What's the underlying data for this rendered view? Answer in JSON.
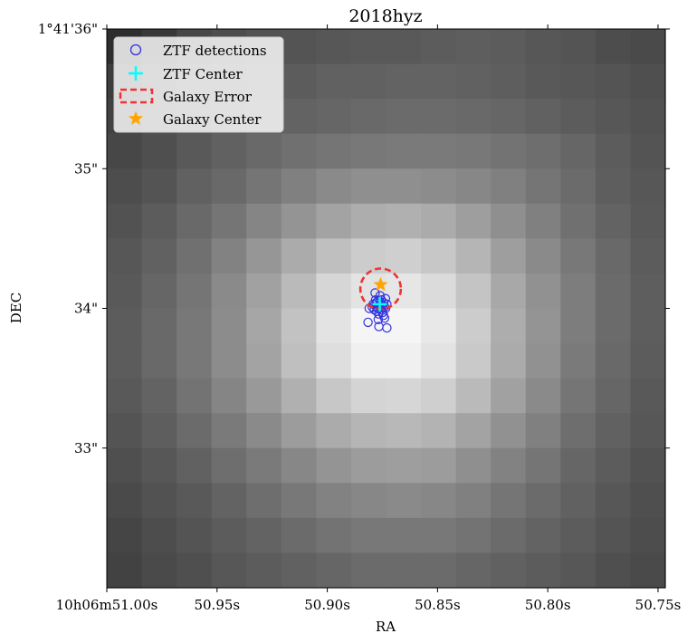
{
  "chart_data": {
    "type": "image-overlay",
    "title": "2018hyz",
    "xlabel": "RA",
    "ylabel": "DEC",
    "x_ticks": [
      {
        "value": 51.0,
        "label": "10h06m51.00s"
      },
      {
        "value": 50.95,
        "label": "50.95s"
      },
      {
        "value": 50.9,
        "label": "50.90s"
      },
      {
        "value": 50.85,
        "label": "50.85s"
      },
      {
        "value": 50.8,
        "label": "50.80s"
      },
      {
        "value": 50.75,
        "label": "50.75s"
      }
    ],
    "y_ticks": [
      {
        "value": 36,
        "label": "1°41'36\""
      },
      {
        "value": 35,
        "label": "35\""
      },
      {
        "value": 34,
        "label": "34\""
      },
      {
        "value": 33,
        "label": "33\""
      }
    ],
    "x_range": [
      51.0,
      50.7467
    ],
    "y_range": [
      32.0,
      36.0
    ],
    "colormap": "gray",
    "image_grid": [
      [
        0.18,
        0.22,
        0.28,
        0.3,
        0.32,
        0.33,
        0.34,
        0.35,
        0.35,
        0.36,
        0.37,
        0.36,
        0.34,
        0.33,
        0.3,
        0.29
      ],
      [
        0.24,
        0.28,
        0.32,
        0.34,
        0.35,
        0.36,
        0.38,
        0.38,
        0.39,
        0.39,
        0.38,
        0.37,
        0.35,
        0.34,
        0.33,
        0.31
      ],
      [
        0.26,
        0.3,
        0.33,
        0.35,
        0.37,
        0.39,
        0.4,
        0.41,
        0.42,
        0.42,
        0.41,
        0.4,
        0.38,
        0.36,
        0.34,
        0.32
      ],
      [
        0.28,
        0.31,
        0.35,
        0.38,
        0.41,
        0.44,
        0.46,
        0.47,
        0.48,
        0.48,
        0.47,
        0.45,
        0.43,
        0.4,
        0.36,
        0.33
      ],
      [
        0.3,
        0.33,
        0.38,
        0.41,
        0.46,
        0.5,
        0.54,
        0.56,
        0.56,
        0.55,
        0.53,
        0.5,
        0.46,
        0.42,
        0.37,
        0.34
      ],
      [
        0.32,
        0.36,
        0.41,
        0.46,
        0.52,
        0.58,
        0.64,
        0.68,
        0.69,
        0.67,
        0.62,
        0.56,
        0.5,
        0.44,
        0.39,
        0.35
      ],
      [
        0.34,
        0.38,
        0.44,
        0.51,
        0.59,
        0.67,
        0.75,
        0.8,
        0.81,
        0.78,
        0.71,
        0.62,
        0.54,
        0.47,
        0.41,
        0.36
      ],
      [
        0.35,
        0.4,
        0.46,
        0.54,
        0.63,
        0.73,
        0.84,
        0.89,
        0.9,
        0.86,
        0.77,
        0.66,
        0.57,
        0.49,
        0.42,
        0.37
      ],
      [
        0.36,
        0.41,
        0.47,
        0.55,
        0.65,
        0.76,
        0.89,
        0.96,
        0.96,
        0.91,
        0.8,
        0.68,
        0.58,
        0.49,
        0.42,
        0.37
      ],
      [
        0.36,
        0.41,
        0.47,
        0.55,
        0.64,
        0.75,
        0.87,
        0.94,
        0.94,
        0.89,
        0.79,
        0.67,
        0.57,
        0.48,
        0.41,
        0.36
      ],
      [
        0.35,
        0.39,
        0.45,
        0.52,
        0.6,
        0.69,
        0.78,
        0.83,
        0.84,
        0.81,
        0.73,
        0.63,
        0.54,
        0.46,
        0.4,
        0.35
      ],
      [
        0.33,
        0.37,
        0.42,
        0.48,
        0.54,
        0.61,
        0.67,
        0.71,
        0.72,
        0.7,
        0.64,
        0.57,
        0.5,
        0.43,
        0.38,
        0.34
      ],
      [
        0.31,
        0.34,
        0.38,
        0.43,
        0.48,
        0.53,
        0.58,
        0.61,
        0.62,
        0.61,
        0.56,
        0.51,
        0.46,
        0.4,
        0.36,
        0.32
      ],
      [
        0.29,
        0.32,
        0.35,
        0.39,
        0.43,
        0.47,
        0.51,
        0.53,
        0.54,
        0.53,
        0.5,
        0.46,
        0.42,
        0.38,
        0.34,
        0.31
      ],
      [
        0.27,
        0.3,
        0.33,
        0.36,
        0.39,
        0.42,
        0.45,
        0.47,
        0.47,
        0.47,
        0.45,
        0.42,
        0.39,
        0.36,
        0.33,
        0.3
      ],
      [
        0.26,
        0.29,
        0.31,
        0.34,
        0.36,
        0.38,
        0.4,
        0.42,
        0.42,
        0.42,
        0.4,
        0.38,
        0.36,
        0.34,
        0.31,
        0.29
      ]
    ],
    "series": [
      {
        "name": "ZTF detections",
        "marker": "open-circle",
        "color": "#3333dd",
        "points": [
          [
            50.8792,
            34.03
          ],
          [
            50.8781,
            34.06
          ],
          [
            50.8772,
            34.05
          ],
          [
            50.8763,
            34.02
          ],
          [
            50.8755,
            34.06
          ],
          [
            50.8744,
            34.04
          ],
          [
            50.8736,
            34.07
          ],
          [
            50.8787,
            33.99
          ],
          [
            50.8776,
            33.98
          ],
          [
            50.8767,
            33.96
          ],
          [
            50.8758,
            33.99
          ],
          [
            50.8749,
            33.97
          ],
          [
            50.874,
            34.01
          ],
          [
            50.873,
            34.03
          ],
          [
            50.8769,
            33.92
          ],
          [
            50.874,
            33.93
          ],
          [
            50.881,
            34.0
          ],
          [
            50.8815,
            33.9
          ],
          [
            50.8766,
            33.87
          ],
          [
            50.873,
            33.86
          ],
          [
            50.876,
            34.09
          ],
          [
            50.8783,
            34.11
          ],
          [
            50.8748,
            34.02
          ],
          [
            50.8778,
            34.04
          ],
          [
            50.8771,
            34.0
          ],
          [
            50.8754,
            34.03
          ],
          [
            50.8762,
            34.05
          ],
          [
            50.8735,
            34.0
          ],
          [
            50.8796,
            34.01
          ],
          [
            50.8745,
            33.95
          ]
        ]
      },
      {
        "name": "ZTF Center",
        "marker": "plus",
        "color": "#00ffff",
        "points": [
          [
            50.8762,
            34.03
          ]
        ]
      },
      {
        "name": "Galaxy Error",
        "marker": "dashed-circle",
        "color": "#ee3333",
        "center": [
          50.8758,
          34.14
        ],
        "radius_arcsec": 0.145
      },
      {
        "name": "Galaxy Center",
        "marker": "star",
        "color": "#ffa500",
        "points": [
          [
            50.8758,
            34.17
          ]
        ]
      }
    ],
    "legend": {
      "placement": "top-left",
      "entries": [
        "ZTF detections",
        "ZTF Center",
        "Galaxy Error",
        "Galaxy Center"
      ]
    }
  }
}
